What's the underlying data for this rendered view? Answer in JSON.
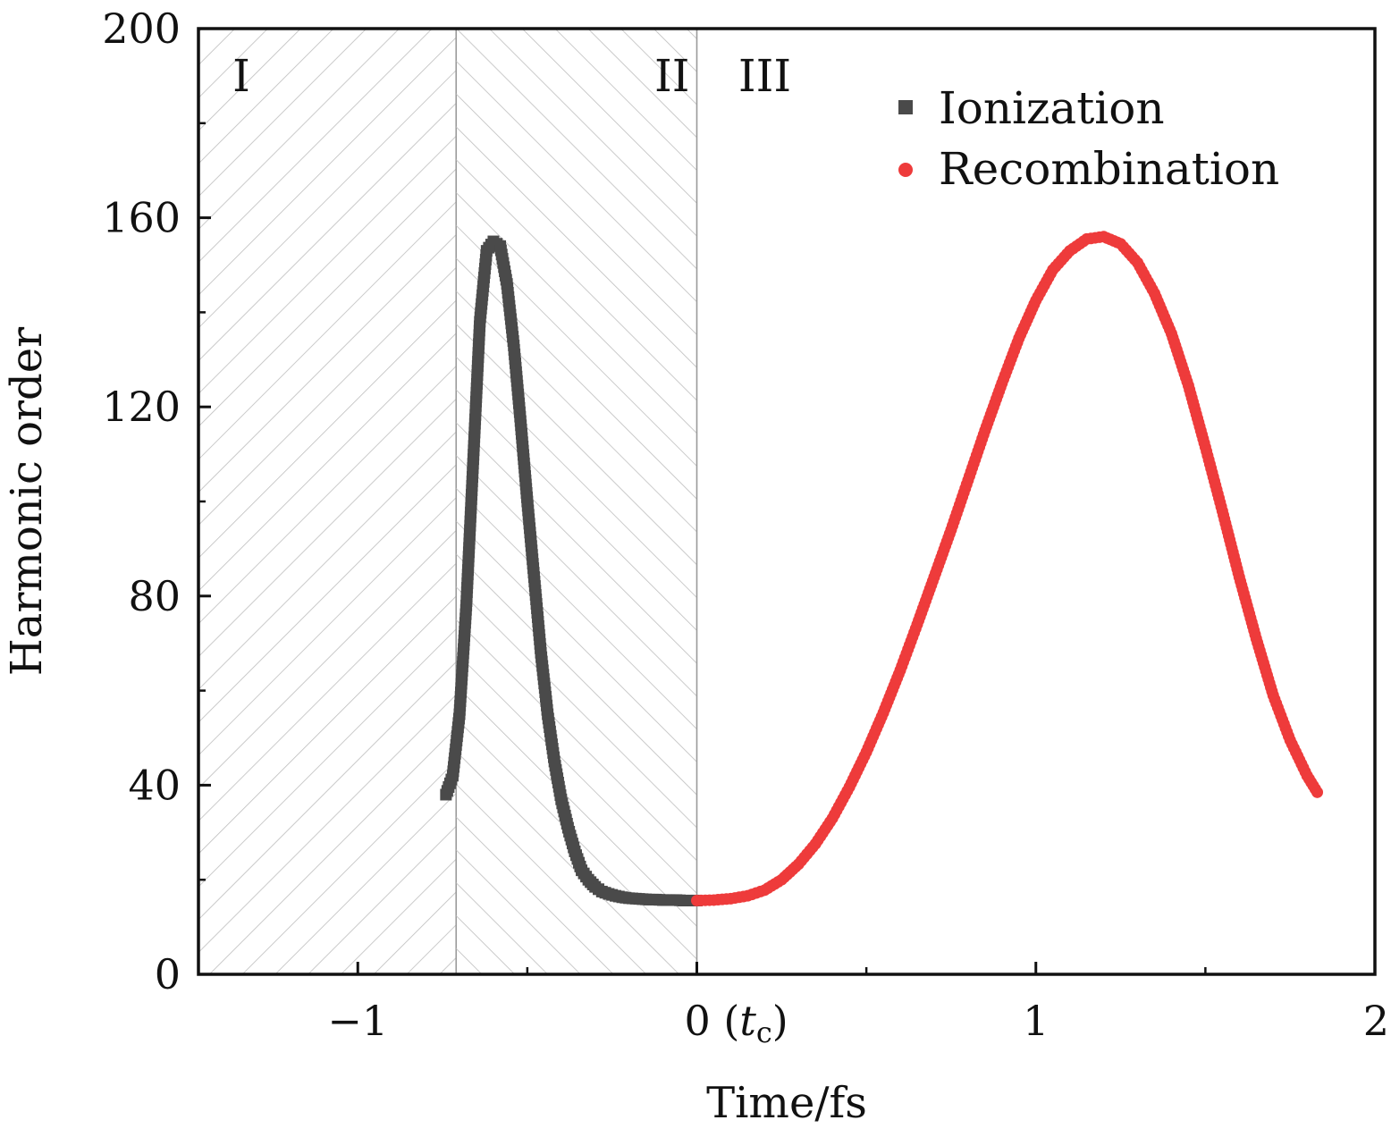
{
  "chart_data": {
    "type": "scatter",
    "xlabel": "Time/fs",
    "ylabel": "Harmonic order",
    "xlim": [
      -1.47,
      2
    ],
    "ylim": [
      0,
      200
    ],
    "x_ticks": [
      {
        "value": -1,
        "label": "−1"
      },
      {
        "value": 0,
        "label": "0 (tc)"
      },
      {
        "value": 1,
        "label": "1"
      },
      {
        "value": 2,
        "label": "2"
      }
    ],
    "y_ticks": [
      {
        "value": 0,
        "label": "0"
      },
      {
        "value": 40,
        "label": "40"
      },
      {
        "value": 80,
        "label": "80"
      },
      {
        "value": 120,
        "label": "120"
      },
      {
        "value": 160,
        "label": "160"
      },
      {
        "value": 200,
        "label": "200"
      }
    ],
    "regions": [
      {
        "label": "I",
        "x_start": -1.47,
        "x_end": -0.71,
        "hatch": "forward"
      },
      {
        "label": "II",
        "x_start": -0.71,
        "x_end": 0,
        "hatch": "backward"
      },
      {
        "label": "III",
        "x_start": 0,
        "x_end": 2,
        "hatch": "none"
      }
    ],
    "legend_position": "top-right",
    "series": [
      {
        "name": "Ionization",
        "marker": "square",
        "color": "#4a4a4a",
        "x": [
          -0.74,
          -0.72,
          -0.7,
          -0.68,
          -0.66,
          -0.64,
          -0.62,
          -0.6,
          -0.58,
          -0.56,
          -0.54,
          -0.52,
          -0.5,
          -0.48,
          -0.46,
          -0.44,
          -0.42,
          -0.4,
          -0.38,
          -0.36,
          -0.34,
          -0.32,
          -0.3,
          -0.28,
          -0.26,
          -0.24,
          -0.22,
          -0.2,
          -0.18,
          -0.16,
          -0.14,
          -0.12,
          -0.1,
          -0.08,
          -0.06,
          -0.04,
          -0.02,
          0.0
        ],
        "y": [
          38,
          42,
          55,
          78,
          108,
          138,
          153,
          155,
          154,
          146,
          133,
          117,
          100,
          84,
          68,
          55,
          45,
          37,
          31,
          26,
          22,
          20,
          18.5,
          17.5,
          17,
          16.6,
          16.3,
          16.1,
          16.0,
          15.9,
          15.8,
          15.8,
          15.7,
          15.7,
          15.7,
          15.6,
          15.6,
          15.6
        ]
      },
      {
        "name": "Recombination",
        "marker": "circle",
        "color": "#ee3b3b",
        "x": [
          0.0,
          0.05,
          0.1,
          0.15,
          0.2,
          0.25,
          0.3,
          0.35,
          0.4,
          0.45,
          0.5,
          0.55,
          0.6,
          0.65,
          0.7,
          0.75,
          0.8,
          0.85,
          0.9,
          0.95,
          1.0,
          1.05,
          1.1,
          1.15,
          1.2,
          1.25,
          1.3,
          1.35,
          1.4,
          1.45,
          1.5,
          1.55,
          1.6,
          1.65,
          1.7,
          1.75,
          1.8,
          1.83
        ],
        "y": [
          15.6,
          15.7,
          16.0,
          16.6,
          17.8,
          20.0,
          23.3,
          27.6,
          33.0,
          39.6,
          47.0,
          55.3,
          64.3,
          74.0,
          84.0,
          94.0,
          104.5,
          115.0,
          125.0,
          134.5,
          142.5,
          149.0,
          153.0,
          155.5,
          156.0,
          154.5,
          150.5,
          144.0,
          135.5,
          124.5,
          111.5,
          98.0,
          84.0,
          71.0,
          59.0,
          49.5,
          42.0,
          38.5
        ]
      }
    ]
  }
}
